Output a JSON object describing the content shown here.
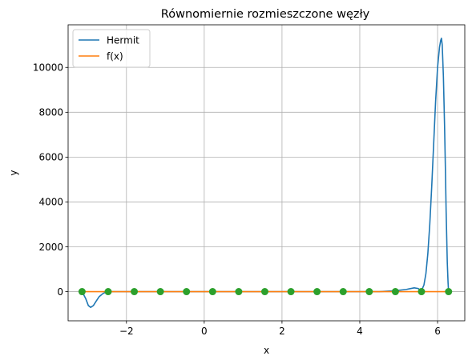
{
  "chart_data": {
    "type": "line",
    "title": "Równomiernie rozmieszczone węzły",
    "xlabel": "x",
    "ylabel": "y",
    "xlim": [
      -3.5,
      6.7
    ],
    "ylim": [
      -1300,
      11900
    ],
    "xticks": [
      -2,
      0,
      2,
      4,
      6
    ],
    "xtick_labels": [
      "−2",
      "0",
      "2",
      "4",
      "6"
    ],
    "yticks": [
      0,
      2000,
      4000,
      6000,
      8000,
      10000
    ],
    "ytick_labels": [
      "0",
      "2000",
      "4000",
      "6000",
      "8000",
      "10000"
    ],
    "grid": true,
    "legend_position": "top-left",
    "series": [
      {
        "name": "Hermit",
        "color": "#1f77b4",
        "x": [
          -3.1416,
          -3.05,
          -2.98,
          -2.92,
          -2.85,
          -2.78,
          -2.7,
          -2.6,
          -2.5,
          -2.3,
          0,
          4.5,
          4.9,
          5.2,
          5.4,
          5.5,
          5.55,
          5.6,
          5.65,
          5.7,
          5.75,
          5.8,
          5.85,
          5.9,
          5.95,
          6.0,
          6.05,
          6.08,
          6.1,
          6.12,
          6.15,
          6.18,
          6.2,
          6.22,
          6.25,
          6.27,
          6.2832
        ],
        "y": [
          0,
          -300,
          -620,
          -700,
          -620,
          -430,
          -220,
          -80,
          0,
          0,
          0,
          0,
          40,
          100,
          170,
          140,
          80,
          100,
          300,
          800,
          1700,
          3000,
          4700,
          6600,
          8500,
          10000,
          10900,
          11200,
          11300,
          11000,
          9600,
          7400,
          5600,
          3600,
          1300,
          400,
          0
        ]
      },
      {
        "name": "f(x)",
        "color": "#ff7f0e",
        "x": [
          -3.1416,
          6.2832
        ],
        "y": [
          0,
          0
        ]
      }
    ],
    "nodes": {
      "color": "#2ca02c",
      "x": [
        -3.1416,
        -2.4702,
        -1.7988,
        -1.1274,
        -0.456,
        0.2154,
        0.8868,
        1.5582,
        2.2296,
        2.901,
        3.5724,
        4.2438,
        4.9152,
        5.5866,
        6.2832
      ],
      "y": [
        0,
        0,
        0,
        0,
        0,
        0,
        0,
        0,
        0,
        0,
        0,
        0,
        0,
        0,
        0
      ]
    }
  }
}
